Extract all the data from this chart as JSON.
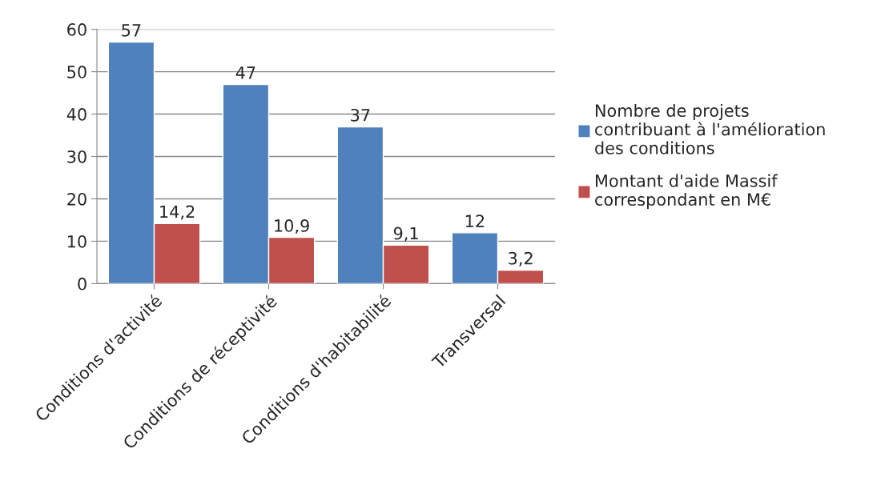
{
  "chart_data": {
    "type": "bar",
    "categories": [
      "Conditions d'activité",
      "Conditions de réceptivité",
      "Conditions d'habitabilité",
      "Transversal"
    ],
    "series": [
      {
        "name": "Nombre de projets contribuant à l'amélioration des conditions",
        "color": "#4f81bd",
        "values": [
          57,
          47,
          37,
          12
        ],
        "value_labels": [
          "57",
          "47",
          "37",
          "12"
        ]
      },
      {
        "name": "Montant d'aide Massif correspondant en M€",
        "color": "#c0504d",
        "values": [
          14.2,
          10.9,
          9.1,
          3.2
        ],
        "value_labels": [
          "14,2",
          "10,9",
          "9,1",
          "3,2"
        ]
      }
    ],
    "ylim": [
      0,
      60
    ],
    "yticks": [
      0,
      10,
      20,
      30,
      40,
      50,
      60
    ],
    "grid": "y",
    "legend": "right"
  }
}
